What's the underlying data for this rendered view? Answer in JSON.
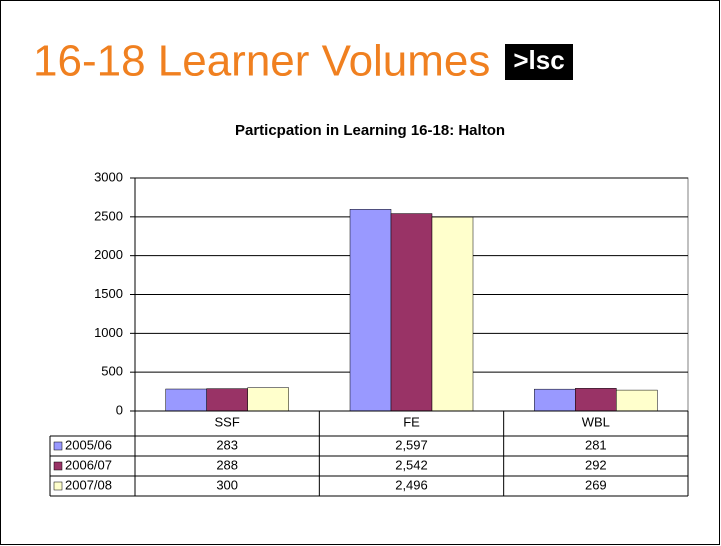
{
  "header": {
    "title": "16-18 Learner Volumes",
    "logo": ">lsc"
  },
  "chart_data": {
    "type": "bar",
    "title": "Particpation in Learning 16-18: Halton",
    "categories": [
      "SSF",
      "FE",
      "WBL"
    ],
    "series": [
      {
        "name": "2005/06",
        "color": "#9999ff",
        "values": [
          283,
          2597,
          281
        ],
        "value_labels": [
          "283",
          "2,597",
          "281"
        ]
      },
      {
        "name": "2006/07",
        "color": "#993366",
        "values": [
          288,
          2542,
          292
        ],
        "value_labels": [
          "288",
          "2,542",
          "292"
        ]
      },
      {
        "name": "2007/08",
        "color": "#ffffcc",
        "values": [
          300,
          2496,
          269
        ],
        "value_labels": [
          "300",
          "2,496",
          "269"
        ]
      }
    ],
    "ylim": [
      0,
      3000
    ],
    "yticks": [
      0,
      500,
      1000,
      1500,
      2000,
      2500,
      3000
    ],
    "grid": true
  }
}
